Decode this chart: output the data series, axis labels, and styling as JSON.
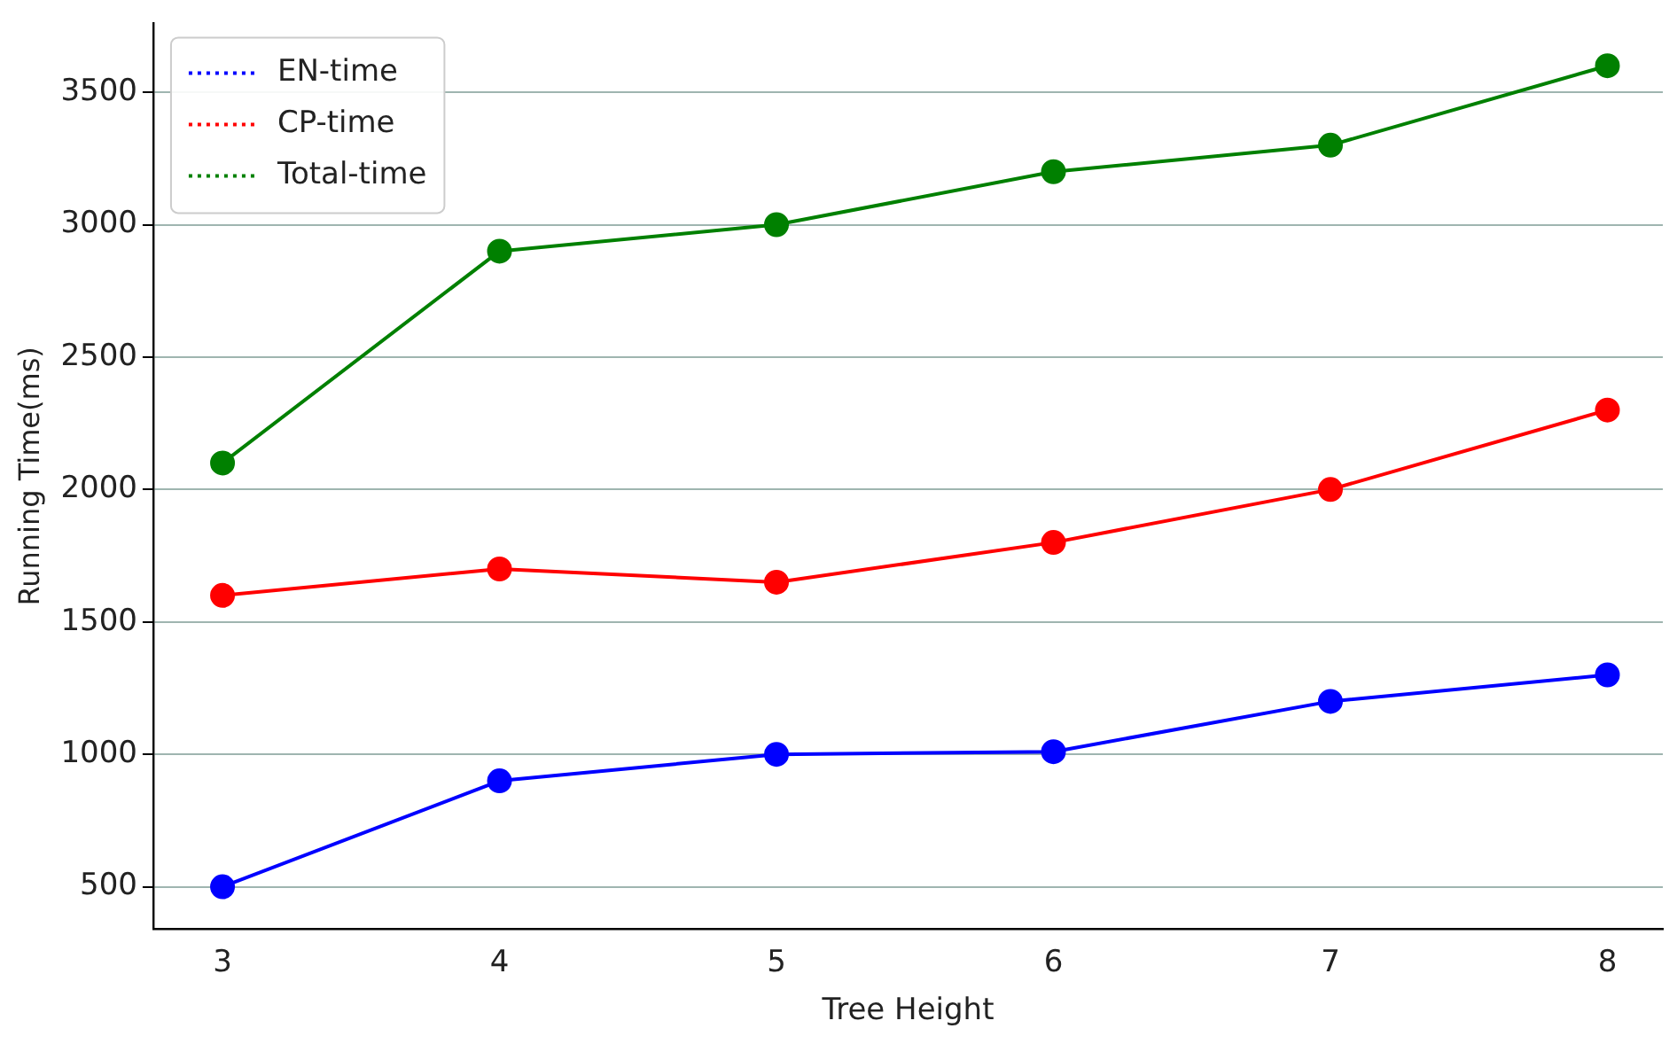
{
  "chart_data": {
    "type": "line",
    "xlabel": "Tree Height",
    "ylabel": "Running Time(ms)",
    "x": [
      3,
      4,
      5,
      6,
      7,
      8
    ],
    "series": [
      {
        "name": "EN-time",
        "color": "#0000ff",
        "values": [
          500,
          900,
          1000,
          1010,
          1200,
          1300
        ]
      },
      {
        "name": "CP-time",
        "color": "#ff0000",
        "values": [
          1600,
          1700,
          1650,
          1800,
          2000,
          2300
        ]
      },
      {
        "name": "Total-time",
        "color": "#008000",
        "values": [
          2100,
          2900,
          3000,
          3200,
          3300,
          3600
        ]
      }
    ],
    "xlim": [
      2.75,
      8.2
    ],
    "xticks": [
      3,
      4,
      5,
      6,
      7,
      8
    ],
    "ylim": [
      340,
      3760
    ],
    "yticks": [
      500,
      1000,
      1500,
      2000,
      2500,
      3000,
      3500
    ],
    "grid": "y",
    "legend": "top left",
    "marker": "circle",
    "line_style": "solid"
  }
}
